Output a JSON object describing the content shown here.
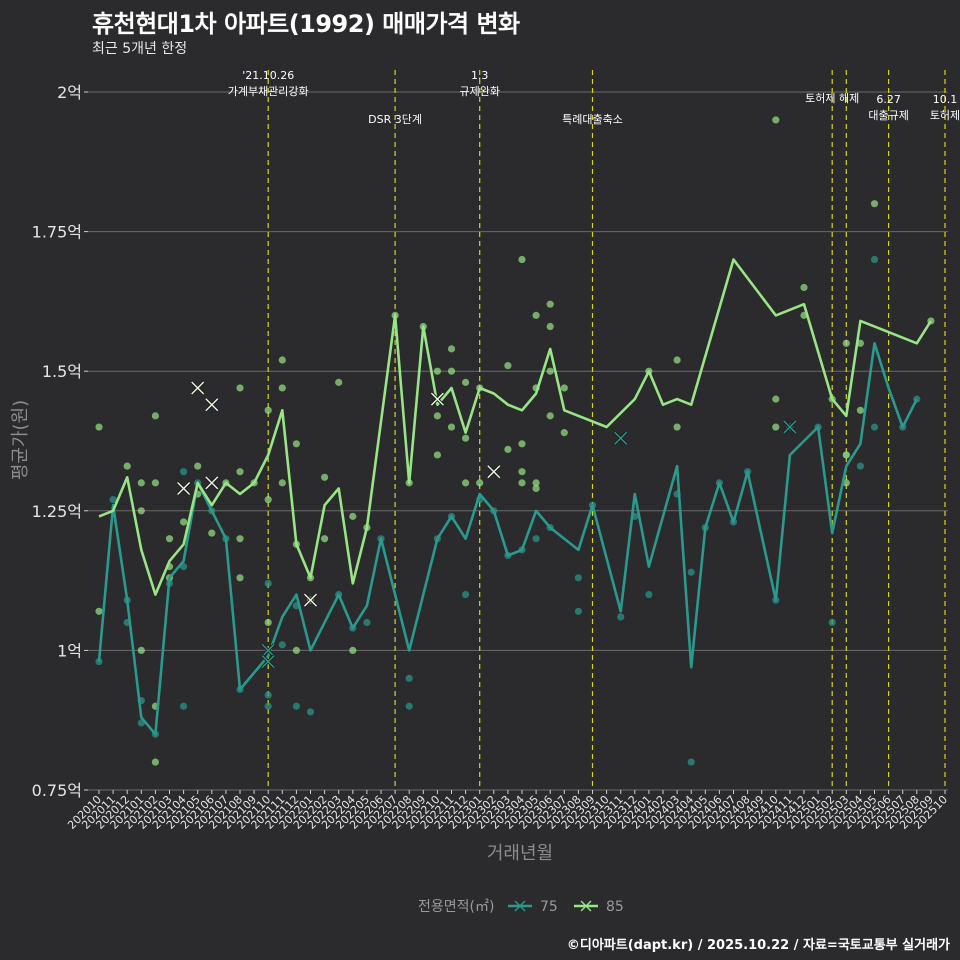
{
  "title": "휴천현대1차 아파트(1992) 매매가격 변화",
  "subtitle": "최근 5개년 한정",
  "credit": "©디아파트(dapt.kr) / 2025.10.22 / 자료=국토교통부 실거래가",
  "colors": {
    "background": "#2b2a2c",
    "grid": "#6b6b6b",
    "series75": "#2a9a8e",
    "series85": "#98e586",
    "eventline": "#d6d61e"
  },
  "chart_data": {
    "type": "line",
    "title": "휴천현대1차 아파트(1992) 매매가격 변화",
    "xlabel": "거래년월",
    "ylabel": "평균가(원)",
    "ylim": [
      0.75,
      2.05
    ],
    "yticks": [
      {
        "value": 0.75,
        "label": "0.75억"
      },
      {
        "value": 1.0,
        "label": "1억"
      },
      {
        "value": 1.25,
        "label": "1.25억"
      },
      {
        "value": 1.5,
        "label": "1.5억"
      },
      {
        "value": 1.75,
        "label": "1.75억"
      },
      {
        "value": 2.0,
        "label": "2억"
      }
    ],
    "x_labels": [
      "202010",
      "202011",
      "202012",
      "202101",
      "202102",
      "202103",
      "202104",
      "202105",
      "202106",
      "202107",
      "202108",
      "202109",
      "202110",
      "202111",
      "202112",
      "202201",
      "202202",
      "202203",
      "202204",
      "202205",
      "202206",
      "202207",
      "202208",
      "202209",
      "202210",
      "202211",
      "202212",
      "202301",
      "202302",
      "202303",
      "202304",
      "202305",
      "202306",
      "202307",
      "202308",
      "202309",
      "202310",
      "202311",
      "202312",
      "202401",
      "202402",
      "202403",
      "202404",
      "202405",
      "202406",
      "202407",
      "202408",
      "202409",
      "202410",
      "202411",
      "202412",
      "202501",
      "202502",
      "202503",
      "202504",
      "202505",
      "202506",
      "202507",
      "202508",
      "202509",
      "202510"
    ],
    "legend_title": "전용면적(㎡)",
    "series": [
      {
        "name": "75",
        "color": "#2a9a8e",
        "points": [
          [
            0,
            0.98
          ],
          [
            1,
            1.26
          ],
          [
            2,
            1.09
          ],
          [
            3,
            0.88
          ],
          [
            4,
            0.85
          ],
          [
            5,
            1.13
          ],
          [
            6,
            1.16
          ],
          [
            7,
            1.3
          ],
          [
            8,
            1.25
          ],
          [
            9,
            1.2
          ],
          [
            10,
            0.93
          ],
          [
            12,
            0.99
          ],
          [
            13,
            1.06
          ],
          [
            14,
            1.1
          ],
          [
            15,
            1.0
          ],
          [
            17,
            1.1
          ],
          [
            18,
            1.04
          ],
          [
            19,
            1.08
          ],
          [
            20,
            1.2
          ],
          [
            22,
            1.0
          ],
          [
            24,
            1.2
          ],
          [
            25,
            1.24
          ],
          [
            26,
            1.2
          ],
          [
            27,
            1.28
          ],
          [
            28,
            1.25
          ],
          [
            29,
            1.17
          ],
          [
            30,
            1.18
          ],
          [
            31,
            1.25
          ],
          [
            32,
            1.22
          ],
          [
            34,
            1.18
          ],
          [
            35,
            1.26
          ],
          [
            37,
            1.07
          ],
          [
            38,
            1.28
          ],
          [
            39,
            1.15
          ],
          [
            41,
            1.33
          ],
          [
            42,
            0.97
          ],
          [
            43,
            1.22
          ],
          [
            44,
            1.3
          ],
          [
            45,
            1.23
          ],
          [
            46,
            1.32
          ],
          [
            48,
            1.09
          ],
          [
            49,
            1.35
          ],
          [
            51,
            1.4
          ],
          [
            52,
            1.21
          ],
          [
            53,
            1.33
          ],
          [
            54,
            1.37
          ],
          [
            55,
            1.55
          ],
          [
            56,
            1.47
          ],
          [
            57,
            1.4
          ],
          [
            58,
            1.45
          ]
        ],
        "scatter": [
          [
            0,
            0.98
          ],
          [
            1,
            1.27
          ],
          [
            2,
            1.09
          ],
          [
            2,
            1.05
          ],
          [
            3,
            0.87
          ],
          [
            3,
            0.91
          ],
          [
            4,
            0.85
          ],
          [
            5,
            1.12
          ],
          [
            6,
            1.32
          ],
          [
            6,
            1.15
          ],
          [
            6,
            0.9
          ],
          [
            7,
            1.3
          ],
          [
            8,
            1.25
          ],
          [
            9,
            1.2
          ],
          [
            10,
            0.93
          ],
          [
            12,
            1.12
          ],
          [
            12,
            0.92
          ],
          [
            12,
            0.9
          ],
          [
            13,
            1.01
          ],
          [
            14,
            1.08
          ],
          [
            14,
            0.9
          ],
          [
            15,
            0.89
          ],
          [
            17,
            1.1
          ],
          [
            18,
            1.04
          ],
          [
            19,
            1.05
          ],
          [
            20,
            1.2
          ],
          [
            22,
            0.95
          ],
          [
            22,
            0.9
          ],
          [
            24,
            1.2
          ],
          [
            25,
            1.24
          ],
          [
            26,
            1.1
          ],
          [
            27,
            1.27
          ],
          [
            28,
            1.25
          ],
          [
            29,
            1.17
          ],
          [
            30,
            1.18
          ],
          [
            31,
            1.2
          ],
          [
            32,
            1.22
          ],
          [
            34,
            1.13
          ],
          [
            34,
            1.07
          ],
          [
            35,
            1.26
          ],
          [
            37,
            1.06
          ],
          [
            38,
            1.24
          ],
          [
            39,
            1.1
          ],
          [
            41,
            1.28
          ],
          [
            42,
            1.14
          ],
          [
            42,
            0.8
          ],
          [
            43,
            1.22
          ],
          [
            44,
            1.3
          ],
          [
            45,
            1.23
          ],
          [
            46,
            1.32
          ],
          [
            48,
            1.09
          ],
          [
            49,
            1.4
          ],
          [
            51,
            1.4
          ],
          [
            52,
            1.05
          ],
          [
            53,
            1.35
          ],
          [
            54,
            1.33
          ],
          [
            55,
            1.7
          ],
          [
            55,
            1.4
          ],
          [
            57,
            1.4
          ],
          [
            58,
            1.45
          ]
        ]
      },
      {
        "name": "85",
        "color": "#98e586",
        "points": [
          [
            0,
            1.24
          ],
          [
            1,
            1.25
          ],
          [
            2,
            1.31
          ],
          [
            3,
            1.18
          ],
          [
            4,
            1.1
          ],
          [
            5,
            1.16
          ],
          [
            6,
            1.19
          ],
          [
            7,
            1.3
          ],
          [
            8,
            1.26
          ],
          [
            9,
            1.3
          ],
          [
            10,
            1.28
          ],
          [
            11,
            1.3
          ],
          [
            12,
            1.35
          ],
          [
            13,
            1.43
          ],
          [
            14,
            1.19
          ],
          [
            15,
            1.13
          ],
          [
            16,
            1.26
          ],
          [
            17,
            1.29
          ],
          [
            18,
            1.12
          ],
          [
            19,
            1.22
          ],
          [
            21,
            1.6
          ],
          [
            22,
            1.3
          ],
          [
            23,
            1.58
          ],
          [
            24,
            1.44
          ],
          [
            25,
            1.47
          ],
          [
            26,
            1.39
          ],
          [
            27,
            1.47
          ],
          [
            28,
            1.46
          ],
          [
            29,
            1.44
          ],
          [
            30,
            1.43
          ],
          [
            31,
            1.46
          ],
          [
            32,
            1.54
          ],
          [
            33,
            1.43
          ],
          [
            36,
            1.4
          ],
          [
            38,
            1.45
          ],
          [
            39,
            1.5
          ],
          [
            40,
            1.44
          ],
          [
            41,
            1.45
          ],
          [
            42,
            1.44
          ],
          [
            45,
            1.7
          ],
          [
            48,
            1.6
          ],
          [
            50,
            1.62
          ],
          [
            52,
            1.45
          ],
          [
            53,
            1.42
          ],
          [
            54,
            1.59
          ],
          [
            58,
            1.55
          ],
          [
            59,
            1.59
          ]
        ],
        "scatter": [
          [
            0,
            1.4
          ],
          [
            0,
            1.07
          ],
          [
            2,
            1.33
          ],
          [
            3,
            1.3
          ],
          [
            3,
            1.25
          ],
          [
            3,
            1.0
          ],
          [
            4,
            1.42
          ],
          [
            4,
            1.3
          ],
          [
            4,
            0.9
          ],
          [
            4,
            0.8
          ],
          [
            5,
            1.2
          ],
          [
            5,
            1.15
          ],
          [
            5,
            1.13
          ],
          [
            6,
            1.23
          ],
          [
            7,
            1.33
          ],
          [
            7,
            1.28
          ],
          [
            8,
            1.21
          ],
          [
            9,
            1.3
          ],
          [
            10,
            1.47
          ],
          [
            10,
            1.32
          ],
          [
            10,
            1.2
          ],
          [
            10,
            1.13
          ],
          [
            11,
            1.3
          ],
          [
            12,
            1.43
          ],
          [
            12,
            1.27
          ],
          [
            12,
            1.05
          ],
          [
            13,
            1.52
          ],
          [
            13,
            1.47
          ],
          [
            13,
            1.3
          ],
          [
            14,
            1.37
          ],
          [
            14,
            1.19
          ],
          [
            14,
            1.0
          ],
          [
            15,
            1.13
          ],
          [
            15,
            1.09
          ],
          [
            16,
            1.31
          ],
          [
            16,
            1.2
          ],
          [
            17,
            1.48
          ],
          [
            18,
            1.24
          ],
          [
            18,
            1.0
          ],
          [
            19,
            1.22
          ],
          [
            21,
            1.6
          ],
          [
            22,
            1.3
          ],
          [
            23,
            1.58
          ],
          [
            24,
            1.5
          ],
          [
            24,
            1.42
          ],
          [
            24,
            1.35
          ],
          [
            25,
            1.54
          ],
          [
            25,
            1.5
          ],
          [
            25,
            1.4
          ],
          [
            26,
            1.48
          ],
          [
            26,
            1.38
          ],
          [
            26,
            1.3
          ],
          [
            27,
            1.47
          ],
          [
            27,
            1.3
          ],
          [
            29,
            1.51
          ],
          [
            29,
            1.36
          ],
          [
            30,
            1.7
          ],
          [
            30,
            1.37
          ],
          [
            30,
            1.32
          ],
          [
            30,
            1.3
          ],
          [
            31,
            1.6
          ],
          [
            31,
            1.47
          ],
          [
            31,
            1.3
          ],
          [
            31,
            1.29
          ],
          [
            32,
            1.62
          ],
          [
            32,
            1.58
          ],
          [
            32,
            1.5
          ],
          [
            32,
            1.42
          ],
          [
            33,
            1.39
          ],
          [
            33,
            1.47
          ],
          [
            39,
            1.5
          ],
          [
            41,
            1.52
          ],
          [
            41,
            1.4
          ],
          [
            48,
            1.95
          ],
          [
            48,
            1.45
          ],
          [
            48,
            1.4
          ],
          [
            50,
            1.65
          ],
          [
            50,
            1.6
          ],
          [
            52,
            1.45
          ],
          [
            53,
            1.55
          ],
          [
            53,
            1.35
          ],
          [
            53,
            1.3
          ],
          [
            54,
            1.55
          ],
          [
            54,
            1.43
          ],
          [
            55,
            1.8
          ],
          [
            59,
            1.59
          ]
        ]
      }
    ],
    "x_markers": [
      {
        "series": "85",
        "x": 6,
        "y": 1.29
      },
      {
        "series": "85",
        "x": 7,
        "y": 1.47
      },
      {
        "series": "85",
        "x": 8,
        "y": 1.3
      },
      {
        "series": "85",
        "x": 8,
        "y": 1.44
      },
      {
        "series": "75",
        "x": 12,
        "y": 1.0
      },
      {
        "series": "75",
        "x": 12,
        "y": 0.98
      },
      {
        "series": "85",
        "x": 15,
        "y": 1.09
      },
      {
        "series": "85",
        "x": 24,
        "y": 1.45
      },
      {
        "series": "85",
        "x": 28,
        "y": 1.32
      },
      {
        "series": "75",
        "x": 37,
        "y": 1.38
      },
      {
        "series": "75",
        "x": 49,
        "y": 1.4
      }
    ],
    "events": [
      {
        "x": 12,
        "label": "'21.10.26\n가계부채관리강화",
        "row": 0
      },
      {
        "x": 21,
        "label": "DSR 3단계",
        "row": 1
      },
      {
        "x": 27,
        "label": "1.3\n규제완화",
        "row": 0
      },
      {
        "x": 35,
        "label": "특례대출축소",
        "row": 1
      },
      {
        "x": 52,
        "label": "토허제 해제",
        "row": 2
      },
      {
        "x": 53,
        "label": "",
        "row": 2
      },
      {
        "x": 56,
        "label": "6.27\n대출규제",
        "row": 3
      },
      {
        "x": 60,
        "label": "10.1\n토허제",
        "row": 3
      }
    ]
  }
}
